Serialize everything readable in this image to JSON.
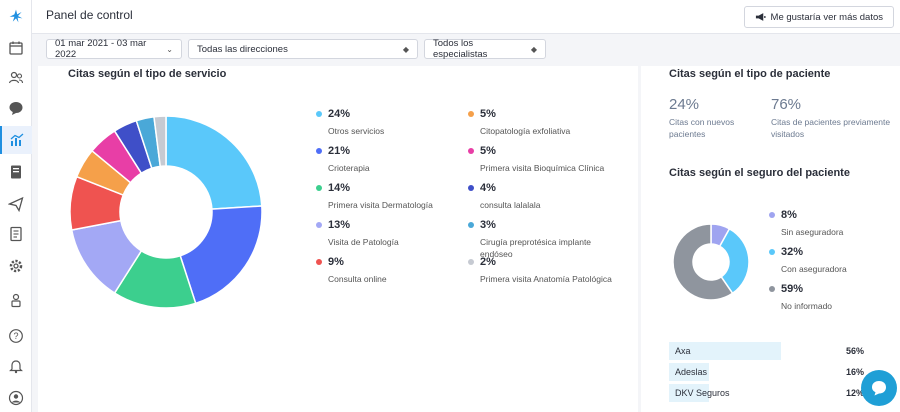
{
  "header": {
    "title": "Panel de control",
    "more_button": "Me gustaría ver más datos"
  },
  "filters": {
    "date_range": "01 mar 2021 - 03 mar 2022",
    "addresses": "Todas las direcciones",
    "specialists": "Todos los especialistas"
  },
  "sidebar": {
    "items": [
      {
        "icon": "calendar-icon"
      },
      {
        "icon": "users-icon"
      },
      {
        "icon": "chat-icon"
      },
      {
        "icon": "stats-icon",
        "active": true
      },
      {
        "icon": "document-icon"
      },
      {
        "icon": "send-icon"
      },
      {
        "icon": "notes-icon"
      },
      {
        "icon": "gear-icon"
      },
      {
        "icon": "lock-user-icon"
      },
      {
        "icon": "help-icon"
      },
      {
        "icon": "bell-icon"
      },
      {
        "icon": "profile-icon"
      }
    ]
  },
  "service_chart": {
    "title": "Citas según el tipo de servicio",
    "items": [
      {
        "pct": "24%",
        "label": "Otros servicios",
        "value": 24,
        "color": "#5ac8fa"
      },
      {
        "pct": "21%",
        "label": "Crioterapia",
        "value": 21,
        "color": "#4f6ef7"
      },
      {
        "pct": "14%",
        "label": "Primera visita Dermatología",
        "value": 14,
        "color": "#3ccf8e"
      },
      {
        "pct": "13%",
        "label": "Visita de Patología",
        "value": 13,
        "color": "#a3a8f5"
      },
      {
        "pct": "9%",
        "label": "Consulta online",
        "value": 9,
        "color": "#ef5350"
      },
      {
        "pct": "5%",
        "label": "Citopatología exfoliativa",
        "value": 5,
        "color": "#f5a04a"
      },
      {
        "pct": "5%",
        "label": "Primera visita Bioquímica Clínica",
        "value": 5,
        "color": "#e83ea6"
      },
      {
        "pct": "4%",
        "label": "consulta lalalala",
        "value": 4,
        "color": "#3f4fc8"
      },
      {
        "pct": "3%",
        "label": "Cirugía preprotésica implante endóseo",
        "value": 3,
        "color": "#4aa8d8"
      },
      {
        "pct": "2%",
        "label": "Primera visita Anatomía Patológica",
        "value": 2,
        "color": "#c6cad2"
      }
    ]
  },
  "patient_type": {
    "title": "Citas según el tipo de paciente",
    "new_pct": "24%",
    "new_label": "Citas con nuevos pacientes",
    "prev_pct": "76%",
    "prev_label": "Citas de pacientes previamente visitados"
  },
  "insurance_chart": {
    "title": "Citas según el seguro del paciente",
    "items": [
      {
        "pct": "8%",
        "label": "Sin aseguradora",
        "value": 8,
        "color": "#9fa4f0"
      },
      {
        "pct": "32%",
        "label": "Con aseguradora",
        "value": 32,
        "color": "#5ac8fa"
      },
      {
        "pct": "59%",
        "label": "No informado",
        "value": 59,
        "color": "#8f959e"
      }
    ]
  },
  "insurers": [
    {
      "name": "Axa",
      "pct": "56%",
      "fill": 0.56
    },
    {
      "name": "Adeslas",
      "pct": "16%",
      "fill": 0.16
    },
    {
      "name": "DKV Seguros",
      "pct": "12%",
      "fill": 0.12
    }
  ],
  "colors": {
    "accent": "#1f8fe0",
    "chat": "#1f9fd6"
  }
}
